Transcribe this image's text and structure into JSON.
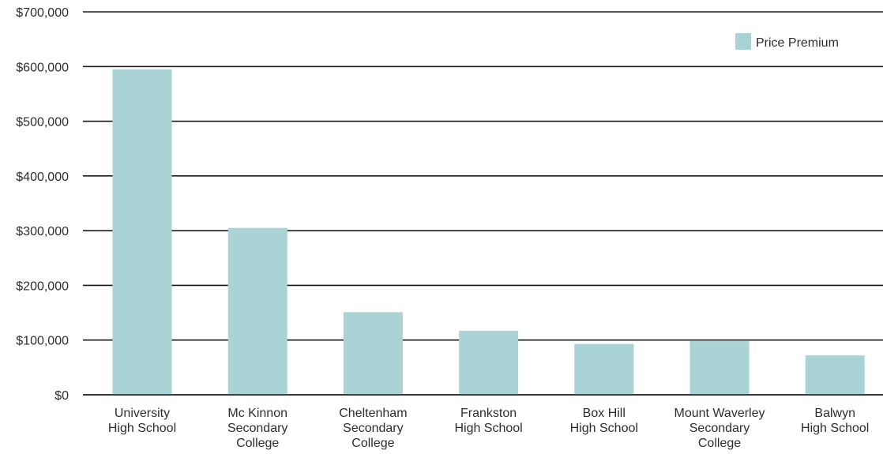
{
  "chart_data": {
    "type": "bar",
    "categories": [
      [
        "University",
        "High School"
      ],
      [
        "Mc Kinnon",
        "Secondary",
        "College"
      ],
      [
        "Cheltenham",
        "Secondary",
        "College"
      ],
      [
        "Frankston",
        "High School"
      ],
      [
        "Box Hill",
        "High School"
      ],
      [
        "Mount Waverley",
        "Secondary",
        "College"
      ],
      [
        "Balwyn",
        "High School"
      ]
    ],
    "series": [
      {
        "name": "Price Premium",
        "values": [
          595000,
          305000,
          151000,
          117000,
          93000,
          98000,
          72000
        ]
      }
    ],
    "ylim": [
      0,
      700000
    ],
    "yticks": [
      "$0",
      "$100,000",
      "$200,000",
      "$300,000",
      "$400,000",
      "$500,000",
      "$600,000",
      "$700,000"
    ],
    "grid": true,
    "legend": "top-right",
    "colors": {
      "bar": "#a9d3d5",
      "grid": "#1a1a1a"
    }
  }
}
